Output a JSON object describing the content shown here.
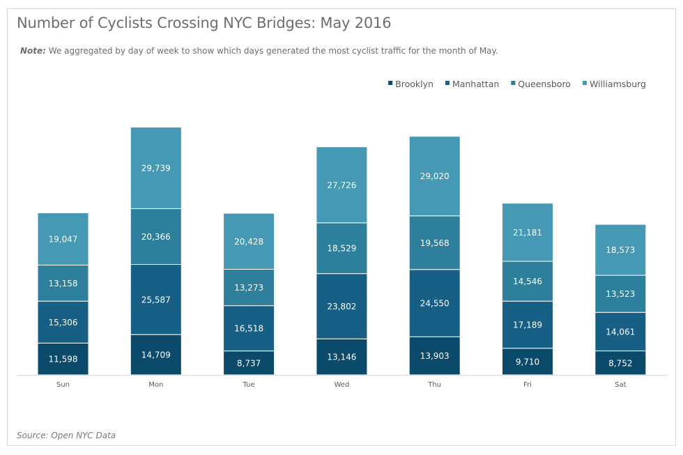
{
  "header": {
    "title": "Number of Cyclists Crossing NYC Bridges: May 2016",
    "note_label": "Note:",
    "note_text": " We aggregated by day of week to show which days generated the most cyclist traffic for the month of May."
  },
  "footer": {
    "source": "Source: Open NYC Data"
  },
  "chart_data": {
    "type": "bar",
    "stacked": true,
    "title": "Number of Cyclists Crossing NYC Bridges: May 2016",
    "xlabel": "",
    "ylabel": "",
    "ylim": [
      0,
      95000
    ],
    "grid": false,
    "legend_position": "top-right",
    "categories": [
      "Sun",
      "Mon",
      "Tue",
      "Wed",
      "Thu",
      "Fri",
      "Sat"
    ],
    "series": [
      {
        "name": "Brooklyn",
        "color": "#0b4a6b",
        "values": [
          11598,
          14709,
          8737,
          13146,
          13903,
          9710,
          8752
        ],
        "labels": [
          "11,598",
          "14,709",
          "8,737",
          "13,146",
          "13,903",
          "9,710",
          "8,752"
        ]
      },
      {
        "name": "Manhattan",
        "color": "#175f84",
        "values": [
          15306,
          25587,
          16518,
          23802,
          24550,
          17189,
          14061
        ],
        "labels": [
          "15,306",
          "25,587",
          "16,518",
          "23,802",
          "24,550",
          "17,189",
          "14,061"
        ]
      },
      {
        "name": "Queensboro",
        "color": "#2e7f9c",
        "values": [
          13158,
          20366,
          13273,
          18529,
          19568,
          14546,
          13523
        ],
        "labels": [
          "13,158",
          "20,366",
          "13,273",
          "18,529",
          "19,568",
          "14,546",
          "13,523"
        ]
      },
      {
        "name": "Williamsburg",
        "color": "#4599b4",
        "values": [
          19047,
          29739,
          20428,
          27726,
          29020,
          21181,
          18573
        ],
        "labels": [
          "19,047",
          "29,739",
          "20,428",
          "27,726",
          "29,020",
          "21,181",
          "18,573"
        ]
      }
    ]
  }
}
